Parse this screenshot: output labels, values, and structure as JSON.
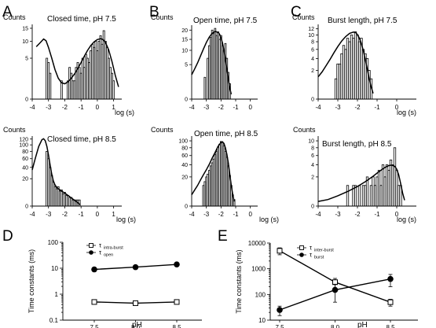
{
  "chart_data": [
    {
      "panel": "A",
      "type": "bar",
      "title": "Closed time, pH 7.5",
      "ylabel": "Counts",
      "xlabel": "log (s)",
      "xlim": [
        -4,
        1.5
      ],
      "xticks": [
        -4,
        -3,
        -2,
        -1,
        0,
        1
      ],
      "yscale": "sqrt",
      "ylim": [
        0,
        16
      ],
      "yticks": [
        0,
        5,
        10,
        15
      ],
      "bin_width": 0.1,
      "bins": [
        [
          -3.1,
          5
        ],
        [
          -3.0,
          4
        ],
        [
          -2.9,
          2
        ],
        [
          -2.2,
          1
        ],
        [
          -1.8,
          1
        ],
        [
          -1.7,
          3
        ],
        [
          -1.6,
          2
        ],
        [
          -1.5,
          1
        ],
        [
          -1.4,
          1
        ],
        [
          -1.3,
          3
        ],
        [
          -1.2,
          4
        ],
        [
          -1.1,
          3
        ],
        [
          -1.0,
          2
        ],
        [
          -0.9,
          5
        ],
        [
          -0.8,
          3
        ],
        [
          -0.7,
          6
        ],
        [
          -0.6,
          5
        ],
        [
          -0.5,
          4
        ],
        [
          -0.4,
          7
        ],
        [
          -0.3,
          9
        ],
        [
          -0.2,
          8
        ],
        [
          -0.1,
          10
        ],
        [
          0.0,
          7
        ],
        [
          0.1,
          10
        ],
        [
          0.2,
          12
        ],
        [
          0.3,
          9
        ],
        [
          0.4,
          14
        ],
        [
          0.5,
          10
        ],
        [
          0.6,
          8
        ],
        [
          0.7,
          5
        ],
        [
          0.8,
          3
        ],
        [
          0.9,
          2
        ],
        [
          1.0,
          1
        ]
      ],
      "fit": [
        [
          -3.75,
          8.2
        ],
        [
          -3.5,
          9.6
        ],
        [
          -3.3,
          10.8
        ],
        [
          -3.15,
          10.2
        ],
        [
          -3.0,
          8.0
        ],
        [
          -2.8,
          5.0
        ],
        [
          -2.6,
          2.6
        ],
        [
          -2.4,
          1.3
        ],
        [
          -2.2,
          0.8
        ],
        [
          -2.0,
          0.7
        ],
        [
          -1.8,
          0.9
        ],
        [
          -1.6,
          1.3
        ],
        [
          -1.4,
          1.9
        ],
        [
          -1.2,
          2.8
        ],
        [
          -1.0,
          4.0
        ],
        [
          -0.8,
          5.5
        ],
        [
          -0.6,
          7.1
        ],
        [
          -0.4,
          8.6
        ],
        [
          -0.2,
          9.8
        ],
        [
          0.0,
          10.6
        ],
        [
          0.2,
          10.9
        ],
        [
          0.35,
          10.6
        ],
        [
          0.5,
          9.6
        ],
        [
          0.7,
          7.2
        ],
        [
          0.9,
          4.2
        ],
        [
          1.1,
          1.7
        ],
        [
          1.3,
          0.45
        ]
      ]
    },
    {
      "panel": "A",
      "type": "bar",
      "title": "Closed time, pH 8.5",
      "ylabel": "Counts",
      "xlabel": "log (s)",
      "xlim": [
        -4,
        1.5
      ],
      "xticks": [
        -4,
        -3,
        -2,
        -1,
        0,
        1
      ],
      "yscale": "sqrt",
      "ylim": [
        0,
        125
      ],
      "yticks": [
        0,
        20,
        40,
        60,
        80,
        100,
        120
      ],
      "bin_width": 0.1,
      "bins": [
        [
          -3.1,
          80
        ],
        [
          -3.0,
          60
        ],
        [
          -2.9,
          40
        ],
        [
          -2.8,
          25
        ],
        [
          -2.7,
          15
        ],
        [
          -2.6,
          10
        ],
        [
          -2.5,
          8
        ],
        [
          -2.4,
          10
        ],
        [
          -2.3,
          6
        ],
        [
          -2.2,
          7
        ],
        [
          -2.1,
          4
        ],
        [
          -2.0,
          5
        ],
        [
          -1.9,
          3
        ],
        [
          -1.8,
          3
        ],
        [
          -1.7,
          2
        ],
        [
          -1.6,
          2
        ],
        [
          -1.5,
          1
        ],
        [
          -1.4,
          1
        ],
        [
          -1.3,
          1
        ],
        [
          -1.2,
          1
        ],
        [
          -1.1,
          1
        ]
      ],
      "fit": [
        [
          -4.0,
          35
        ],
        [
          -3.8,
          62
        ],
        [
          -3.6,
          95
        ],
        [
          -3.4,
          118
        ],
        [
          -3.3,
          121
        ],
        [
          -3.2,
          114
        ],
        [
          -3.1,
          95
        ],
        [
          -3.0,
          70
        ],
        [
          -2.9,
          45
        ],
        [
          -2.8,
          27
        ],
        [
          -2.7,
          17
        ],
        [
          -2.6,
          12
        ],
        [
          -2.5,
          9.5
        ],
        [
          -2.4,
          8
        ],
        [
          -2.3,
          7
        ],
        [
          -2.2,
          6
        ],
        [
          -2.0,
          4.5
        ],
        [
          -1.8,
          3
        ],
        [
          -1.6,
          1.8
        ],
        [
          -1.4,
          0.9
        ],
        [
          -1.2,
          0.3
        ],
        [
          -1.05,
          0.05
        ]
      ]
    },
    {
      "panel": "B",
      "type": "bar",
      "title": "Open time, pH 7.5",
      "ylabel": "Counts",
      "xlabel": "",
      "xlim": [
        -4,
        0.5
      ],
      "xticks": [
        -4,
        -3,
        -2,
        -1,
        0
      ],
      "yscale": "sqrt",
      "ylim": [
        0,
        22
      ],
      "yticks": [
        0,
        5,
        10,
        15,
        20
      ],
      "bin_width": 0.1,
      "bins": [
        [
          -3.1,
          2
        ],
        [
          -2.9,
          7
        ],
        [
          -2.8,
          12
        ],
        [
          -2.7,
          16
        ],
        [
          -2.6,
          20
        ],
        [
          -2.5,
          18
        ],
        [
          -2.4,
          21
        ],
        [
          -2.3,
          17
        ],
        [
          -2.2,
          19
        ],
        [
          -2.1,
          15
        ],
        [
          -2.0,
          17
        ],
        [
          -1.9,
          12
        ],
        [
          -1.8,
          10
        ],
        [
          -1.7,
          13
        ],
        [
          -1.6,
          7
        ],
        [
          -1.5,
          3
        ],
        [
          -1.4,
          1
        ]
      ],
      "fit": [
        [
          -4.0,
          2.5
        ],
        [
          -3.8,
          3.8
        ],
        [
          -3.6,
          5.5
        ],
        [
          -3.4,
          7.8
        ],
        [
          -3.2,
          10.5
        ],
        [
          -3.0,
          13.5
        ],
        [
          -2.8,
          16.2
        ],
        [
          -2.6,
          18.2
        ],
        [
          -2.4,
          19.2
        ],
        [
          -2.2,
          18.8
        ],
        [
          -2.1,
          17.7
        ],
        [
          -2.0,
          15.8
        ],
        [
          -1.9,
          13.2
        ],
        [
          -1.8,
          10
        ],
        [
          -1.7,
          6.8
        ],
        [
          -1.6,
          3.8
        ],
        [
          -1.5,
          1.7
        ],
        [
          -1.4,
          0.5
        ],
        [
          -1.3,
          0.1
        ]
      ]
    },
    {
      "panel": "B",
      "type": "bar",
      "title": "Open time, pH 8.5",
      "ylabel": "Counts",
      "xlabel": "log (s)",
      "xlim": [
        -4,
        0.5
      ],
      "xticks": [
        -4,
        -3,
        -2,
        -1,
        0
      ],
      "yscale": "sqrt",
      "ylim": [
        0,
        110
      ],
      "yticks": [
        0,
        20,
        40,
        60,
        80,
        100
      ],
      "bin_width": 0.1,
      "bins": [
        [
          -3.2,
          10
        ],
        [
          -3.1,
          14
        ],
        [
          -3.0,
          20
        ],
        [
          -2.9,
          24
        ],
        [
          -2.8,
          30
        ],
        [
          -2.7,
          38
        ],
        [
          -2.6,
          44
        ],
        [
          -2.5,
          52
        ],
        [
          -2.4,
          62
        ],
        [
          -2.3,
          70
        ],
        [
          -2.2,
          82
        ],
        [
          -2.1,
          90
        ],
        [
          -2.0,
          98
        ],
        [
          -1.9,
          95
        ],
        [
          -1.8,
          85
        ],
        [
          -1.7,
          70
        ],
        [
          -1.6,
          56
        ],
        [
          -1.5,
          38
        ],
        [
          -1.4,
          22
        ],
        [
          -1.3,
          10
        ],
        [
          -1.2,
          3
        ],
        [
          -1.1,
          1
        ]
      ],
      "fit": [
        [
          -4.0,
          3
        ],
        [
          -3.8,
          6
        ],
        [
          -3.6,
          10
        ],
        [
          -3.4,
          16
        ],
        [
          -3.2,
          23
        ],
        [
          -3.0,
          31
        ],
        [
          -2.8,
          41
        ],
        [
          -2.6,
          54
        ],
        [
          -2.4,
          68
        ],
        [
          -2.2,
          84
        ],
        [
          -2.0,
          95
        ],
        [
          -1.9,
          97
        ],
        [
          -1.8,
          92
        ],
        [
          -1.7,
          80
        ],
        [
          -1.6,
          63
        ],
        [
          -1.5,
          43
        ],
        [
          -1.4,
          24
        ],
        [
          -1.3,
          10
        ],
        [
          -1.2,
          3
        ],
        [
          -1.1,
          0.5
        ]
      ]
    },
    {
      "panel": "C",
      "type": "bar",
      "title": "Burst length, pH 7.5",
      "ylabel": "Counts",
      "xlabel": "log (s)",
      "xlim": [
        -4,
        1.0
      ],
      "xticks": [
        -4,
        -3,
        -2,
        -1,
        0
      ],
      "yscale": "sqrt",
      "ylim": [
        0,
        13
      ],
      "yticks": [
        0,
        2,
        4,
        6,
        8,
        10,
        12
      ],
      "bin_width": 0.1,
      "bins": [
        [
          -3.1,
          1
        ],
        [
          -3.0,
          3
        ],
        [
          -2.9,
          3
        ],
        [
          -2.8,
          5
        ],
        [
          -2.7,
          7
        ],
        [
          -2.6,
          6
        ],
        [
          -2.5,
          9
        ],
        [
          -2.4,
          8
        ],
        [
          -2.3,
          10
        ],
        [
          -2.2,
          9
        ],
        [
          -2.1,
          11
        ],
        [
          -2.0,
          10
        ],
        [
          -1.9,
          8
        ],
        [
          -1.8,
          9
        ],
        [
          -1.7,
          6
        ],
        [
          -1.6,
          5
        ],
        [
          -1.5,
          4
        ],
        [
          -1.4,
          2
        ],
        [
          -1.3,
          1
        ]
      ],
      "fit": [
        [
          -4.0,
          1.2
        ],
        [
          -3.8,
          1.8
        ],
        [
          -3.6,
          2.7
        ],
        [
          -3.4,
          3.8
        ],
        [
          -3.2,
          5.2
        ],
        [
          -3.0,
          6.7
        ],
        [
          -2.8,
          8.2
        ],
        [
          -2.6,
          9.5
        ],
        [
          -2.4,
          10.5
        ],
        [
          -2.2,
          10.9
        ],
        [
          -2.1,
          10.8
        ],
        [
          -2.0,
          10.1
        ],
        [
          -1.9,
          9.0
        ],
        [
          -1.8,
          7.5
        ],
        [
          -1.7,
          5.7
        ],
        [
          -1.6,
          3.8
        ],
        [
          -1.5,
          2.2
        ],
        [
          -1.4,
          1.0
        ],
        [
          -1.3,
          0.35
        ],
        [
          -1.2,
          0.08
        ]
      ]
    },
    {
      "panel": "C",
      "type": "bar",
      "title": "Burst length, pH 8.5",
      "ylabel": "Counts",
      "xlabel": "log (s)",
      "xlim": [
        -4,
        1.0
      ],
      "xticks": [
        -4,
        -3,
        -2,
        -1,
        0
      ],
      "yscale": "sqrt",
      "ylim": [
        0,
        11
      ],
      "yticks": [
        0,
        2,
        4,
        6,
        8,
        10
      ],
      "bin_width": 0.1,
      "bins": [
        [
          -2.5,
          1
        ],
        [
          -2.2,
          1
        ],
        [
          -2.1,
          1
        ],
        [
          -1.9,
          1
        ],
        [
          -1.7,
          1
        ],
        [
          -1.6,
          1
        ],
        [
          -1.5,
          2
        ],
        [
          -1.3,
          1
        ],
        [
          -1.2,
          2
        ],
        [
          -1.1,
          1
        ],
        [
          -1.0,
          2
        ],
        [
          -0.9,
          3
        ],
        [
          -0.8,
          1
        ],
        [
          -0.7,
          4
        ],
        [
          -0.6,
          2
        ],
        [
          -0.5,
          4
        ],
        [
          -0.4,
          3
        ],
        [
          -0.3,
          5
        ],
        [
          -0.2,
          4
        ],
        [
          -0.1,
          8
        ],
        [
          0.0,
          3
        ],
        [
          0.1,
          1
        ],
        [
          0.2,
          1
        ]
      ],
      "fit": [
        [
          -4.0,
          0.05
        ],
        [
          -3.5,
          0.1
        ],
        [
          -3.0,
          0.25
        ],
        [
          -2.5,
          0.5
        ],
        [
          -2.0,
          0.9
        ],
        [
          -1.6,
          1.4
        ],
        [
          -1.2,
          2.1
        ],
        [
          -0.9,
          2.8
        ],
        [
          -0.6,
          3.5
        ],
        [
          -0.4,
          3.85
        ],
        [
          -0.25,
          3.95
        ],
        [
          -0.1,
          3.7
        ],
        [
          0.0,
          3.2
        ],
        [
          0.1,
          2.3
        ],
        [
          0.2,
          1.2
        ],
        [
          0.3,
          0.4
        ],
        [
          0.4,
          0.08
        ]
      ]
    },
    {
      "panel": "D",
      "type": "line",
      "title": "",
      "xlabel": "pH",
      "ylabel": "Time constants (ms)",
      "yscale": "log",
      "ylim": [
        0.1,
        100
      ],
      "xlim": [
        7.4,
        8.6
      ],
      "categories": [
        7.5,
        8.0,
        8.5
      ],
      "xtick_labels": [
        "7.5",
        "8.0",
        "8.5"
      ],
      "ytick_labels": [
        "0.1",
        "1",
        "10",
        "100"
      ],
      "legend_position": "top-left",
      "series": [
        {
          "name": "intra-burst",
          "legend_base": "τ",
          "marker": "open-square",
          "values": [
            0.5,
            0.45,
            0.5
          ],
          "errors": [
            0.05,
            0.05,
            0.05
          ]
        },
        {
          "name": "open",
          "legend_base": "τ",
          "marker": "filled-circle",
          "values": [
            9,
            11,
            14
          ],
          "errors": [
            1,
            1,
            1.5
          ]
        }
      ]
    },
    {
      "panel": "E",
      "type": "line",
      "title": "",
      "xlabel": "pH",
      "ylabel": "Time constants (ms)",
      "yscale": "log",
      "ylim": [
        10,
        10000
      ],
      "xlim": [
        7.4,
        8.6
      ],
      "categories": [
        7.5,
        8.0,
        8.5
      ],
      "xtick_labels": [
        "7.5",
        "8.0",
        "8.5"
      ],
      "ytick_labels": [
        "10",
        "100",
        "1000",
        "10000"
      ],
      "legend_position": "top-center",
      "series": [
        {
          "name": "inter-burst",
          "legend_base": "τ",
          "marker": "open-square",
          "values": [
            5000,
            300,
            50
          ],
          "errors": [
            1500,
            120,
            15
          ]
        },
        {
          "name": "burst",
          "legend_base": "τ",
          "marker": "filled-circle",
          "values": [
            25,
            150,
            400
          ],
          "errors": [
            10,
            100,
            200
          ]
        }
      ]
    }
  ],
  "panel_labels": [
    "A",
    "B",
    "C",
    "D",
    "E"
  ]
}
